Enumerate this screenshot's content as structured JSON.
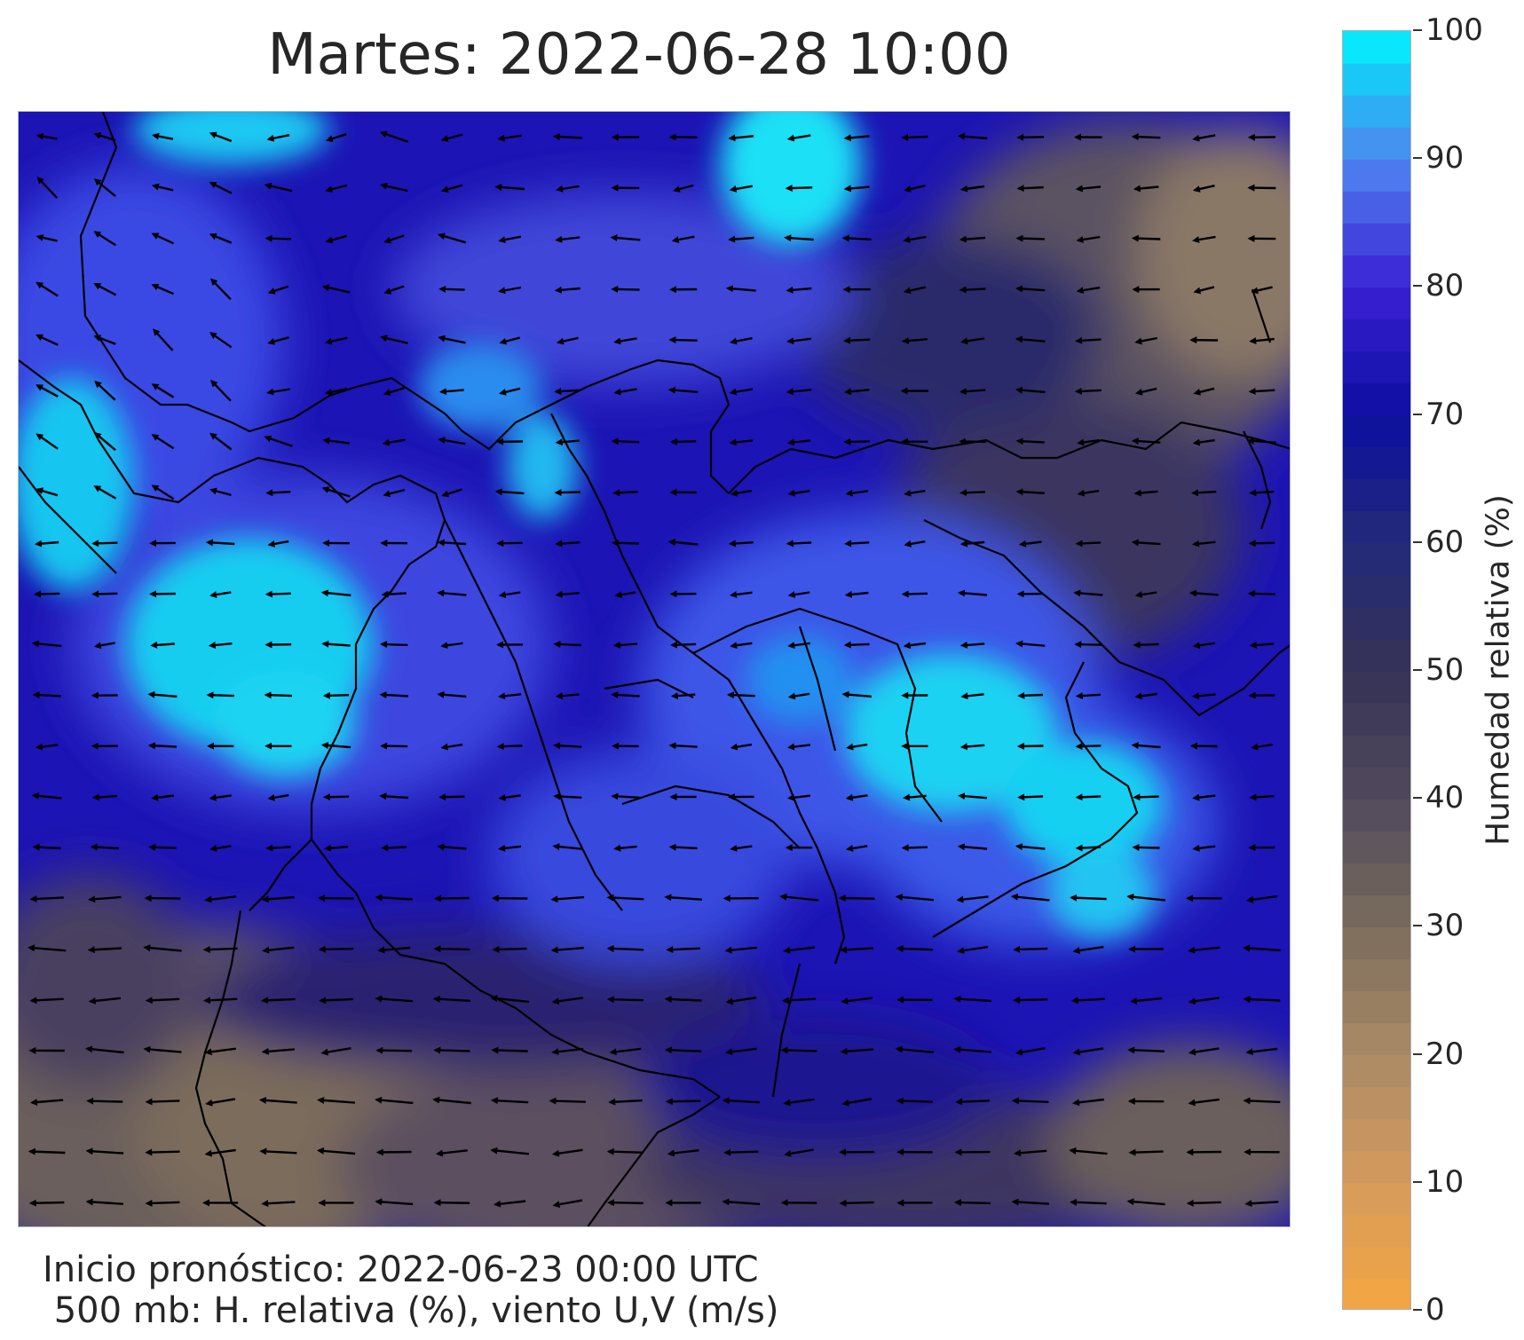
{
  "title": "Martes: 2022-06-28 10:00",
  "footer": {
    "line1": "Inicio pronóstico: 2022-06-23 00:00 UTC",
    "line2": " 500 mb: H. relativa (%), viento U,V (m/s)"
  },
  "colorbar": {
    "label": "Humedad relativa (%)",
    "ticks": [
      "0",
      "10",
      "20",
      "30",
      "40",
      "50",
      "60",
      "70",
      "80",
      "90",
      "100"
    ],
    "stops": [
      {
        "value": 0,
        "color": "#f5a742"
      },
      {
        "value": 10,
        "color": "#d69a5c"
      },
      {
        "value": 20,
        "color": "#ab8a66"
      },
      {
        "value": 30,
        "color": "#7a6c5c"
      },
      {
        "value": 40,
        "color": "#514a5c"
      },
      {
        "value": 50,
        "color": "#363256"
      },
      {
        "value": 60,
        "color": "#232a78"
      },
      {
        "value": 70,
        "color": "#0c0ea0"
      },
      {
        "value": 80,
        "color": "#3a20d4"
      },
      {
        "value": 90,
        "color": "#4f86f0"
      },
      {
        "value": 95,
        "color": "#23b8f5"
      },
      {
        "value": 100,
        "color": "#00f6ff"
      }
    ]
  },
  "map": {
    "description_colors": {
      "dry": "#7d6e5a",
      "mid": "#2a2c70",
      "humid": "#2a22c8",
      "very_humid": "#19d8f5"
    },
    "wind_direction": "easterly"
  }
}
